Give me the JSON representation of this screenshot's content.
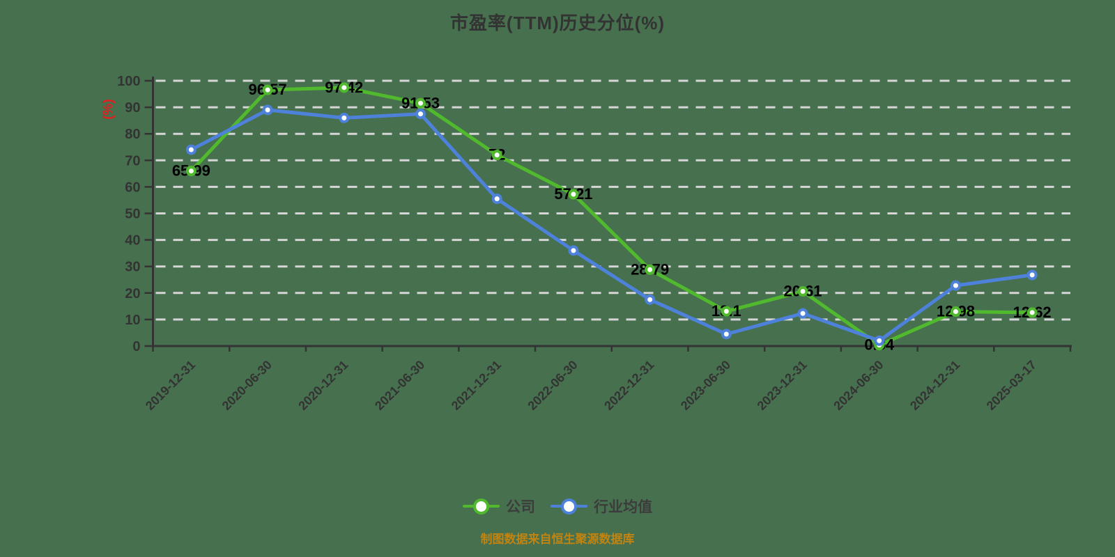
{
  "colors": {
    "background": "#47704f",
    "axis": "#333333",
    "grid": "#d6d6d6",
    "title_text": "#333333",
    "tick_text": "#333333",
    "data_label": "#000000",
    "ylabel_text": "#e02020",
    "legend_text": "#3c3c3c",
    "footer_text": "#c28410",
    "marker_fill": "#ffffff"
  },
  "footer": {
    "text": "制图数据来自恒生聚源数据库"
  },
  "chart_data": {
    "type": "line",
    "title": "市盈率(TTM)历史分位(%)",
    "ylabel": "(%)",
    "ylim": [
      0,
      100
    ],
    "ytick_step": 10,
    "grid": "horizontal-dashed",
    "legend_position": "bottom",
    "x_label_rotation": 45,
    "categories": [
      "2019-12-31",
      "2020-06-30",
      "2020-12-31",
      "2021-06-30",
      "2021-12-31",
      "2022-06-30",
      "2022-12-31",
      "2023-06-30",
      "2023-12-31",
      "2024-06-30",
      "2024-12-31",
      "2025-03-17"
    ],
    "series": [
      {
        "name": "公司",
        "slug": "company",
        "color": "#50b92d",
        "values": [
          65.99,
          96.57,
          97.42,
          91.53,
          72,
          57.21,
          28.79,
          13.1,
          20.61,
          0.34,
          12.98,
          12.62
        ],
        "point_labels": [
          "65.99",
          "96.57",
          "97.42",
          "91.53",
          "72",
          "57.21",
          "28.79",
          "13.1",
          "20.61",
          "0.34",
          "12.98",
          "12.62"
        ]
      },
      {
        "name": "行业均值",
        "slug": "industry-average",
        "color": "#4e81da",
        "values": [
          74,
          89,
          86,
          87.5,
          55.5,
          36,
          17.5,
          4.5,
          12.3,
          2,
          22.8,
          26.8
        ],
        "point_labels": []
      }
    ]
  }
}
